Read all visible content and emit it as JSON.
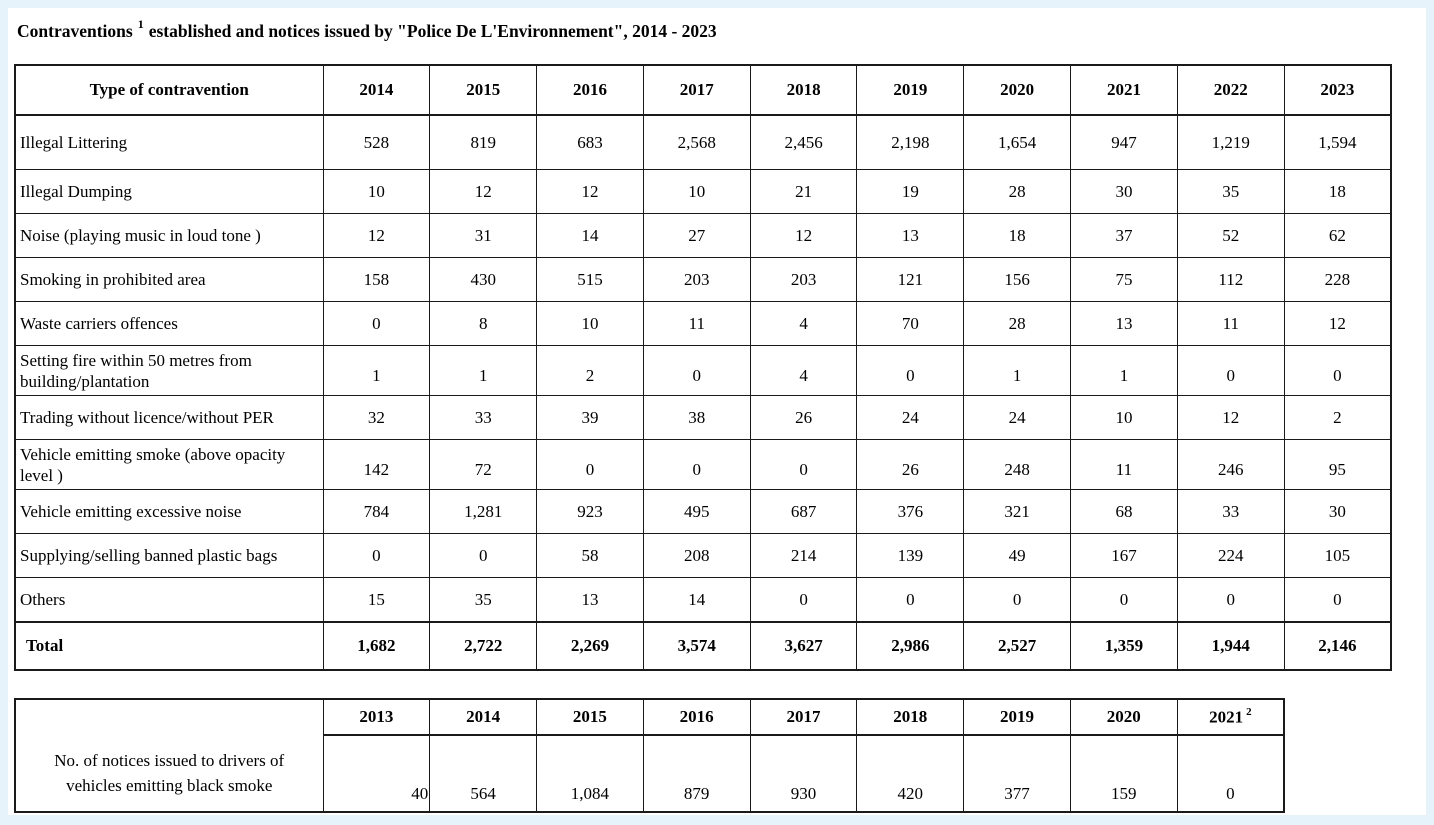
{
  "page": {
    "title_prefix": "Contraventions",
    "title_footnote": "1",
    "title_rest": "established and notices issued by \"Police De L'Environnement\", 2014 - 2023"
  },
  "colors": {
    "frame": "#e7f3fa",
    "border": "#1a1a1a",
    "text": "#000000",
    "background": "#ffffff"
  },
  "main_table": {
    "columns": [
      "Type of contravention",
      "2014",
      "2015",
      "2016",
      "2017",
      "2018",
      "2019",
      "2020",
      "2021",
      "2022",
      "2023"
    ],
    "rows": [
      {
        "label": "Illegal Littering",
        "two_line": false,
        "values": [
          "528",
          "819",
          "683",
          "2,568",
          "2,456",
          "2,198",
          "1,654",
          "947",
          "1,219",
          "1,594"
        ]
      },
      {
        "label": "Illegal Dumping",
        "two_line": false,
        "values": [
          "10",
          "12",
          "12",
          "10",
          "21",
          "19",
          "28",
          "30",
          "35",
          "18"
        ]
      },
      {
        "label": "Noise (playing music in loud tone )",
        "two_line": false,
        "values": [
          "12",
          "31",
          "14",
          "27",
          "12",
          "13",
          "18",
          "37",
          "52",
          "62"
        ]
      },
      {
        "label": "Smoking in prohibited area",
        "two_line": false,
        "values": [
          "158",
          "430",
          "515",
          "203",
          "203",
          "121",
          "156",
          "75",
          "112",
          "228"
        ]
      },
      {
        "label": "Waste carriers offences",
        "two_line": false,
        "values": [
          "0",
          "8",
          "10",
          "11",
          "4",
          "70",
          "28",
          "13",
          "11",
          "12"
        ]
      },
      {
        "label": "Setting fire within 50 metres from building/plantation",
        "two_line": true,
        "values": [
          "1",
          "1",
          "2",
          "0",
          "4",
          "0",
          "1",
          "1",
          "0",
          "0"
        ]
      },
      {
        "label": "Trading without licence/without PER",
        "two_line": false,
        "values": [
          "32",
          "33",
          "39",
          "38",
          "26",
          "24",
          "24",
          "10",
          "12",
          "2"
        ]
      },
      {
        "label": "Vehicle emitting smoke (above opacity level )",
        "two_line": true,
        "values": [
          "142",
          "72",
          "0",
          "0",
          "0",
          "26",
          "248",
          "11",
          "246",
          "95"
        ]
      },
      {
        "label": "Vehicle emitting excessive noise",
        "two_line": false,
        "values": [
          "784",
          "1,281",
          "923",
          "495",
          "687",
          "376",
          "321",
          "68",
          "33",
          "30"
        ]
      },
      {
        "label": "Supplying/selling banned plastic bags",
        "two_line": false,
        "values": [
          "0",
          "0",
          "58",
          "208",
          "214",
          "139",
          "49",
          "167",
          "224",
          "105"
        ]
      },
      {
        "label": "Others",
        "two_line": false,
        "values": [
          "15",
          "35",
          "13",
          "14",
          "0",
          "0",
          "0",
          "0",
          "0",
          "0"
        ]
      }
    ],
    "total_row": {
      "label": "Total",
      "values": [
        "1,682",
        "2,722",
        "2,269",
        "3,574",
        "3,627",
        "2,986",
        "2,527",
        "1,359",
        "1,944",
        "2,146"
      ]
    }
  },
  "notices_table": {
    "years": [
      "2013",
      "2014",
      "2015",
      "2016",
      "2017",
      "2018",
      "2019",
      "2020",
      "2021"
    ],
    "last_year_footnote": "2",
    "label_lines": [
      "No. of notices issued to drivers of",
      "vehicles emitting black smoke"
    ],
    "values": [
      "40",
      "564",
      "1,084",
      "879",
      "930",
      "420",
      "377",
      "159",
      "0"
    ]
  }
}
